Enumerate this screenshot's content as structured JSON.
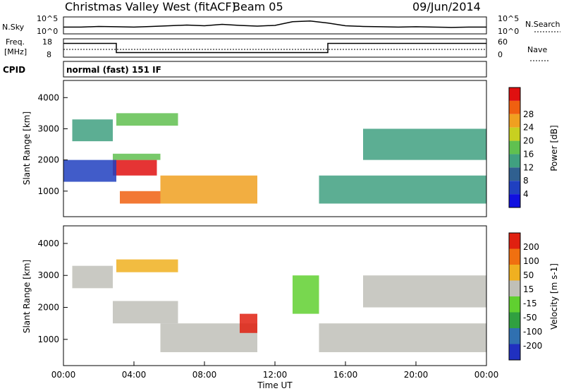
{
  "header": {
    "station": "Christmas Valley West (fitACF)",
    "beam": "Beam 05",
    "date": "09/Jun/2014"
  },
  "panels": {
    "nsky_label": "N.Sky",
    "nsky_ticks": [
      "10^5",
      "10^0"
    ],
    "nsearch_label": "N.Search",
    "nsearch_ticks": [
      "10^5",
      "10^0"
    ],
    "freq_label_1": "Freq.",
    "freq_label_2": "[MHz]",
    "freq_ticks": [
      "18",
      "8"
    ],
    "nave_label": "Nave",
    "nave_ticks": [
      "60",
      "0"
    ],
    "cpid_label": "CPID",
    "cpid_text": "normal (fast) 151 IF"
  },
  "colors": {
    "power": [
      "#1010e0",
      "#2040c0",
      "#306090",
      "#40a080",
      "#60c050",
      "#c8d020",
      "#f0a020",
      "#f06010",
      "#e01010"
    ],
    "velocity": [
      "#2030c0",
      "#3070b0",
      "#30a040",
      "#60d030",
      "#c0c0b8",
      "#f0b020",
      "#f07010",
      "#e02010"
    ]
  },
  "chart_data": [
    {
      "type": "line",
      "name": "N.Sky / N.Search",
      "x": [
        0,
        1,
        2,
        3,
        4,
        5,
        6,
        7,
        8,
        9,
        10,
        11,
        12,
        13,
        14,
        15,
        16,
        17,
        18,
        19,
        20,
        21,
        22,
        23,
        24
      ],
      "values": [
        2,
        2,
        2.2,
        2.1,
        2.0,
        2.2,
        2.4,
        2.6,
        2.4,
        2.8,
        2.5,
        2.3,
        2.5,
        3.6,
        3.8,
        3.2,
        2.4,
        2.2,
        2.1,
        2.0,
        2.1,
        2.0,
        1.9,
        2.0,
        2.0
      ],
      "ylim": [
        0,
        5
      ]
    },
    {
      "type": "line",
      "name": "Freq. / Nave",
      "x": [
        0,
        3,
        3,
        15,
        15,
        24
      ],
      "values": [
        15.5,
        15.5,
        10.5,
        10.5,
        15.5,
        15.5
      ],
      "ylim": [
        8,
        18
      ]
    },
    {
      "type": "heatmap",
      "xlabel": "Time UT",
      "ylabel": "Slant Range [km]",
      "colorbar_label": "Power [dB]",
      "x_ticks": [
        "00:00",
        "04:00",
        "08:00",
        "12:00",
        "16:00",
        "20:00",
        "00:00"
      ],
      "y_ticks": [
        "1000",
        "2000",
        "3000",
        "4000"
      ],
      "ylim": [
        180,
        4550
      ],
      "colorbar_ticks": [
        "4",
        "8",
        "12",
        "16",
        "20",
        "24",
        "28"
      ],
      "regions": [
        {
          "t0": 0.5,
          "t1": 2.8,
          "r0": 2600,
          "r1": 3300,
          "level": 3
        },
        {
          "t0": 2.8,
          "t1": 5.3,
          "r0": 1500,
          "r1": 2000,
          "level": 8
        },
        {
          "t0": 2.8,
          "t1": 5.5,
          "r0": 2000,
          "r1": 2200,
          "level": 4
        },
        {
          "t0": 3.0,
          "t1": 6.5,
          "r0": 3100,
          "r1": 3500,
          "level": 4
        },
        {
          "t0": 5.5,
          "t1": 11.0,
          "r0": 600,
          "r1": 1500,
          "level": 6
        },
        {
          "t0": 3.2,
          "t1": 5.5,
          "r0": 600,
          "r1": 1000,
          "level": 7
        },
        {
          "t0": 14.5,
          "t1": 24.0,
          "r0": 600,
          "r1": 1500,
          "level": 3
        },
        {
          "t0": 17.0,
          "t1": 24.0,
          "r0": 2000,
          "r1": 3000,
          "level": 3
        },
        {
          "t0": 0.0,
          "t1": 3.0,
          "r0": 1300,
          "r1": 2000,
          "level": 1
        }
      ]
    },
    {
      "type": "heatmap",
      "xlabel": "Time UT",
      "ylabel": "Slant Range [km]",
      "colorbar_label": "Velocity [m s-1]",
      "x_ticks": [
        "00:00",
        "04:00",
        "08:00",
        "12:00",
        "16:00",
        "20:00",
        "00:00"
      ],
      "y_ticks": [
        "1000",
        "2000",
        "3000",
        "4000"
      ],
      "ylim": [
        180,
        4550
      ],
      "colorbar_ticks": [
        "200",
        "100",
        "50",
        "15",
        "-15",
        "-50",
        "-100",
        "-200"
      ],
      "regions": [
        {
          "t0": 0.5,
          "t1": 2.8,
          "r0": 2600,
          "r1": 3300,
          "level": 4
        },
        {
          "t0": 2.8,
          "t1": 6.5,
          "r0": 1500,
          "r1": 2200,
          "level": 4
        },
        {
          "t0": 3.0,
          "t1": 6.5,
          "r0": 3100,
          "r1": 3500,
          "level": 5
        },
        {
          "t0": 5.5,
          "t1": 11.0,
          "r0": 600,
          "r1": 1500,
          "level": 4
        },
        {
          "t0": 10.0,
          "t1": 11.0,
          "r0": 1200,
          "r1": 1800,
          "level": 7
        },
        {
          "t0": 14.5,
          "t1": 24.0,
          "r0": 600,
          "r1": 1500,
          "level": 4
        },
        {
          "t0": 17.0,
          "t1": 24.0,
          "r0": 2000,
          "r1": 3000,
          "level": 4
        },
        {
          "t0": 13.0,
          "t1": 14.5,
          "r0": 1800,
          "r1": 3000,
          "level": 3
        }
      ]
    }
  ]
}
